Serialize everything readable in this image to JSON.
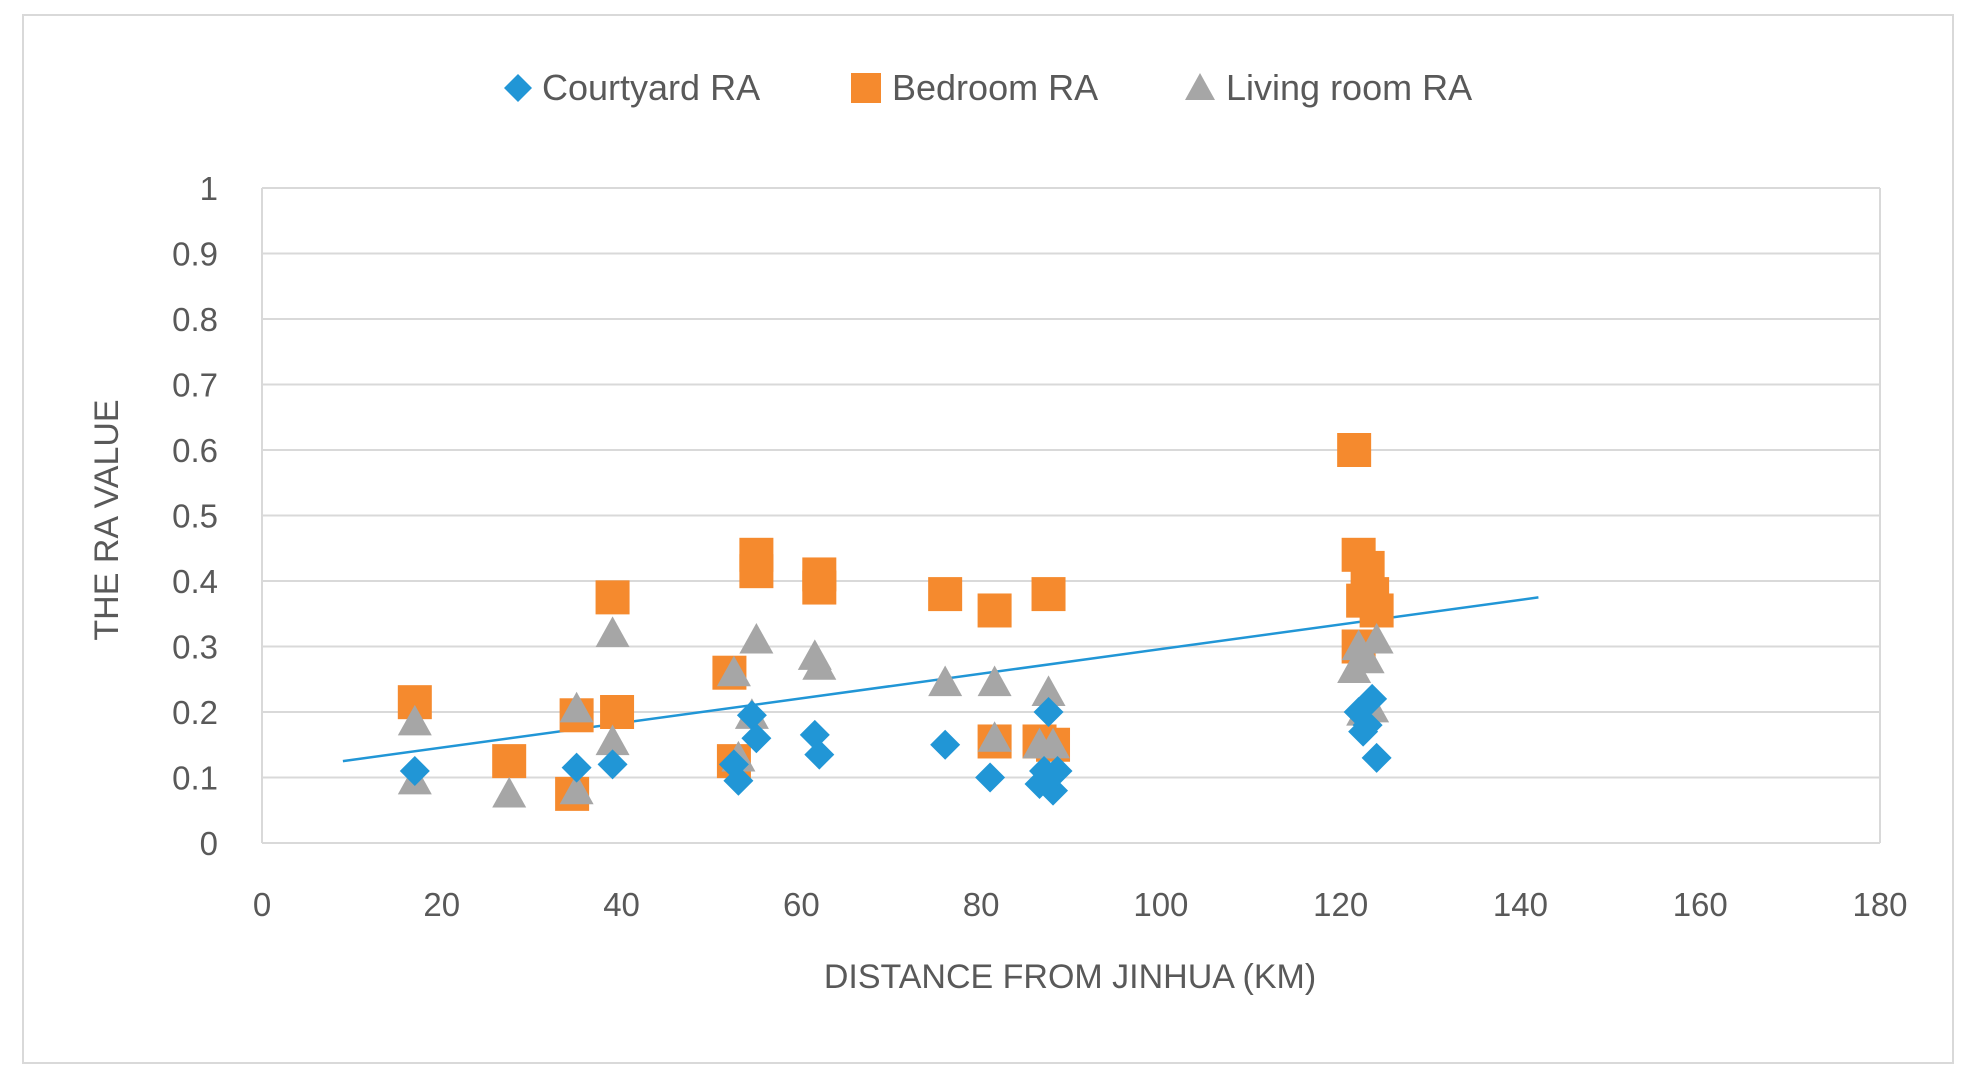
{
  "chart_data": {
    "type": "scatter",
    "title": "",
    "xlabel": "DISTANCE FROM JINHUA (KM)",
    "ylabel": "THE RA VALUE",
    "xlim": [
      0,
      180
    ],
    "ylim": [
      0,
      1
    ],
    "xticks": [
      "0",
      "20",
      "40",
      "60",
      "80",
      "100",
      "120",
      "140",
      "160",
      "180"
    ],
    "yticks": [
      "0",
      "0.1",
      "0.2",
      "0.3",
      "0.4",
      "0.5",
      "0.6",
      "0.7",
      "0.8",
      "0.9",
      "1"
    ],
    "grid": "horizontal",
    "legend_position": "top",
    "colors": {
      "courtyard": "#2196d6",
      "bedroom": "#f58a2e",
      "living": "#a6a6a6",
      "trend": "#2196d6",
      "grid": "#d9d9d9",
      "text": "#595959"
    },
    "series": [
      {
        "name": "Courtyard RA",
        "marker": "diamond",
        "color": "#2196d6",
        "x": [
          17,
          35,
          39,
          52.5,
          53,
          54.5,
          55,
          61.5,
          62,
          76,
          81,
          86.5,
          87,
          87.5,
          88,
          88.5,
          122,
          122.5,
          123,
          123.5,
          124
        ],
        "y": [
          0.11,
          0.115,
          0.12,
          0.12,
          0.095,
          0.195,
          0.16,
          0.165,
          0.135,
          0.15,
          0.1,
          0.09,
          0.11,
          0.2,
          0.08,
          0.11,
          0.2,
          0.17,
          0.18,
          0.22,
          0.13
        ]
      },
      {
        "name": "Bedroom RA",
        "marker": "square",
        "color": "#f58a2e",
        "x": [
          17,
          27.5,
          34.5,
          35,
          39,
          39.5,
          52,
          52.5,
          55,
          55,
          62,
          62,
          76,
          81.5,
          81.5,
          86.5,
          87.5,
          88,
          121.5,
          122,
          122,
          122.5,
          123,
          123.5,
          124
        ],
        "y": [
          0.215,
          0.125,
          0.075,
          0.195,
          0.375,
          0.2,
          0.26,
          0.125,
          0.44,
          0.415,
          0.41,
          0.39,
          0.38,
          0.355,
          0.155,
          0.155,
          0.38,
          0.15,
          0.6,
          0.44,
          0.3,
          0.37,
          0.42,
          0.38,
          0.355
        ]
      },
      {
        "name": "Living room RA",
        "marker": "triangle",
        "color": "#a6a6a6",
        "x": [
          17,
          17,
          27.5,
          35,
          35,
          39,
          39,
          52.5,
          53,
          54.5,
          55,
          61.5,
          62,
          76,
          81.5,
          81.5,
          86.5,
          87.5,
          88,
          121.5,
          122,
          122.5,
          123,
          123.5,
          124
        ],
        "y": [
          0.185,
          0.095,
          0.075,
          0.08,
          0.205,
          0.32,
          0.155,
          0.26,
          0.13,
          0.195,
          0.31,
          0.285,
          0.27,
          0.245,
          0.245,
          0.16,
          0.15,
          0.23,
          0.15,
          0.265,
          0.3,
          0.2,
          0.28,
          0.205,
          0.31
        ]
      }
    ],
    "trendline": {
      "x": [
        9,
        142
      ],
      "y": [
        0.125,
        0.375
      ]
    }
  }
}
